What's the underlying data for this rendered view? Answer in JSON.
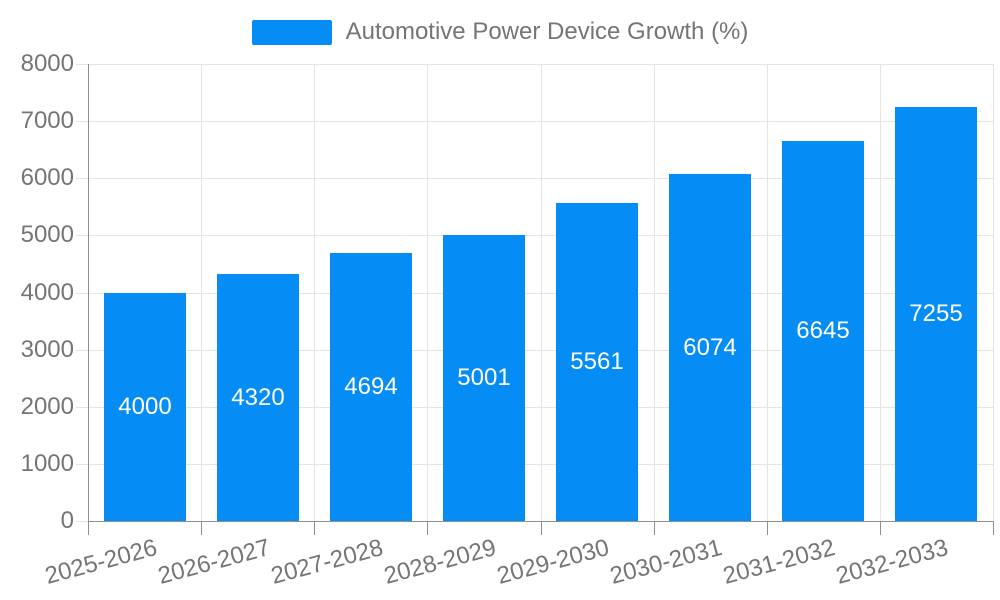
{
  "legend": {
    "label": "Automotive Power Device Growth (%)"
  },
  "chart_data": {
    "type": "bar",
    "title": "Automotive Power Device Growth (%)",
    "series_name": "Automotive Power Device Growth (%)",
    "categories": [
      "2025-2026",
      "2026-2027",
      "2027-2028",
      "2028-2029",
      "2029-2030",
      "2030-2031",
      "2031-2032",
      "2032-2033"
    ],
    "values": [
      4000,
      4320,
      4694,
      5001,
      5561,
      6074,
      6645,
      7255
    ],
    "value_labels": [
      "4000",
      "4320",
      "4694",
      "5001",
      "5561",
      "6074",
      "6645",
      "7255"
    ],
    "xlabel": "",
    "ylabel": "",
    "ylim": [
      0,
      8000
    ],
    "y_ticks": [
      0,
      1000,
      2000,
      3000,
      4000,
      5000,
      6000,
      7000,
      8000
    ],
    "y_tick_labels": [
      "0",
      "1000",
      "2000",
      "3000",
      "4000",
      "5000",
      "6000",
      "7000",
      "8000"
    ],
    "grid": true,
    "legend_position": "top-center",
    "x_tick_rotation_deg": -15,
    "colors": {
      "bar": "#058DF5",
      "value_label": "#FFFFFF",
      "axis_text": "#757575",
      "legend_text": "#757575",
      "grid_line": "#E4E4E4",
      "axis_line": "#8F8F8F",
      "background": "#FFFFFF"
    }
  }
}
